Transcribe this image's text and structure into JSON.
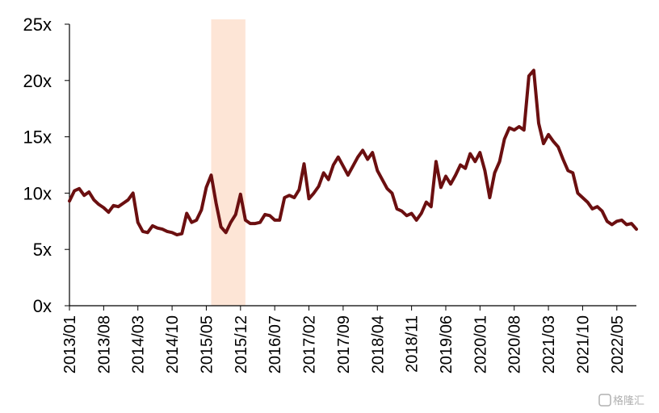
{
  "chart_data": {
    "type": "line",
    "title": "",
    "xlabel": "",
    "ylabel": "",
    "ylim": [
      0,
      25
    ],
    "xlim": [
      "2013-01",
      "2022-09"
    ],
    "y_ticks": [
      "0x",
      "5x",
      "10x",
      "15x",
      "20x",
      "25x"
    ],
    "x_ticks": [
      "2013/01",
      "2013/08",
      "2014/03",
      "2014/10",
      "2015/05",
      "2015/12",
      "2016/07",
      "2017/02",
      "2017/09",
      "2018/04",
      "2018/11",
      "2019/06",
      "2020/01",
      "2020/08",
      "2021/03",
      "2021/10",
      "2022/05"
    ],
    "grid": false,
    "highlight_band": {
      "from": "2015-06",
      "to": "2016-01",
      "color": "#fde5d6"
    },
    "series": [
      {
        "color": "#6b0f10",
        "points": [
          [
            "2013-01",
            9.3
          ],
          [
            "2013-02",
            10.2
          ],
          [
            "2013-03",
            10.4
          ],
          [
            "2013-04",
            9.8
          ],
          [
            "2013-05",
            10.1
          ],
          [
            "2013-06",
            9.4
          ],
          [
            "2013-07",
            9.0
          ],
          [
            "2013-08",
            8.7
          ],
          [
            "2013-09",
            8.3
          ],
          [
            "2013-10",
            8.9
          ],
          [
            "2013-11",
            8.8
          ],
          [
            "2013-12",
            9.1
          ],
          [
            "2014-01",
            9.4
          ],
          [
            "2014-02",
            10.0
          ],
          [
            "2014-03",
            7.4
          ],
          [
            "2014-04",
            6.6
          ],
          [
            "2014-05",
            6.5
          ],
          [
            "2014-06",
            7.1
          ],
          [
            "2014-07",
            6.9
          ],
          [
            "2014-08",
            6.8
          ],
          [
            "2014-09",
            6.6
          ],
          [
            "2014-10",
            6.5
          ],
          [
            "2014-11",
            6.3
          ],
          [
            "2014-12",
            6.4
          ],
          [
            "2015-01",
            8.2
          ],
          [
            "2015-02",
            7.4
          ],
          [
            "2015-03",
            7.6
          ],
          [
            "2015-04",
            8.5
          ],
          [
            "2015-05",
            10.5
          ],
          [
            "2015-06",
            11.6
          ],
          [
            "2015-07",
            9.1
          ],
          [
            "2015-08",
            7.0
          ],
          [
            "2015-09",
            6.5
          ],
          [
            "2015-10",
            7.4
          ],
          [
            "2015-11",
            8.1
          ],
          [
            "2015-12",
            9.9
          ],
          [
            "2016-01",
            7.6
          ],
          [
            "2016-02",
            7.3
          ],
          [
            "2016-03",
            7.3
          ],
          [
            "2016-04",
            7.4
          ],
          [
            "2016-05",
            8.1
          ],
          [
            "2016-06",
            8.0
          ],
          [
            "2016-07",
            7.6
          ],
          [
            "2016-08",
            7.6
          ],
          [
            "2016-09",
            9.6
          ],
          [
            "2016-10",
            9.8
          ],
          [
            "2016-11",
            9.6
          ],
          [
            "2016-12",
            10.3
          ],
          [
            "2017-01",
            12.6
          ],
          [
            "2017-02",
            9.5
          ],
          [
            "2017-03",
            10.0
          ],
          [
            "2017-04",
            10.6
          ],
          [
            "2017-05",
            11.8
          ],
          [
            "2017-06",
            11.2
          ],
          [
            "2017-07",
            12.5
          ],
          [
            "2017-08",
            13.2
          ],
          [
            "2017-09",
            12.4
          ],
          [
            "2017-10",
            11.6
          ],
          [
            "2017-11",
            12.4
          ],
          [
            "2017-12",
            13.2
          ],
          [
            "2018-01",
            13.8
          ],
          [
            "2018-02",
            13.0
          ],
          [
            "2018-03",
            13.6
          ],
          [
            "2018-04",
            12.0
          ],
          [
            "2018-05",
            11.2
          ],
          [
            "2018-06",
            10.4
          ],
          [
            "2018-07",
            10.0
          ],
          [
            "2018-08",
            8.6
          ],
          [
            "2018-09",
            8.4
          ],
          [
            "2018-10",
            8.0
          ],
          [
            "2018-11",
            8.2
          ],
          [
            "2018-12",
            7.6
          ],
          [
            "2019-01",
            8.2
          ],
          [
            "2019-02",
            9.2
          ],
          [
            "2019-03",
            8.8
          ],
          [
            "2019-04",
            12.8
          ],
          [
            "2019-05",
            10.5
          ],
          [
            "2019-06",
            11.5
          ],
          [
            "2019-07",
            10.8
          ],
          [
            "2019-08",
            11.6
          ],
          [
            "2019-09",
            12.5
          ],
          [
            "2019-10",
            12.2
          ],
          [
            "2019-11",
            13.5
          ],
          [
            "2019-12",
            12.8
          ],
          [
            "2020-01",
            13.6
          ],
          [
            "2020-02",
            12.0
          ],
          [
            "2020-03",
            9.6
          ],
          [
            "2020-04",
            11.8
          ],
          [
            "2020-05",
            12.8
          ],
          [
            "2020-06",
            14.8
          ],
          [
            "2020-07",
            15.8
          ],
          [
            "2020-08",
            15.6
          ],
          [
            "2020-09",
            15.9
          ],
          [
            "2020-10",
            15.6
          ],
          [
            "2020-11",
            20.4
          ],
          [
            "2020-12",
            20.9
          ],
          [
            "2021-01",
            16.2
          ],
          [
            "2021-02",
            14.4
          ],
          [
            "2021-03",
            15.2
          ],
          [
            "2021-04",
            14.6
          ],
          [
            "2021-05",
            14.1
          ],
          [
            "2021-06",
            13.0
          ],
          [
            "2021-07",
            12.0
          ],
          [
            "2021-08",
            11.8
          ],
          [
            "2021-09",
            10.0
          ],
          [
            "2021-10",
            9.6
          ],
          [
            "2021-11",
            9.2
          ],
          [
            "2021-12",
            8.6
          ],
          [
            "2022-01",
            8.8
          ],
          [
            "2022-02",
            8.4
          ],
          [
            "2022-03",
            7.5
          ],
          [
            "2022-04",
            7.2
          ],
          [
            "2022-05",
            7.5
          ],
          [
            "2022-06",
            7.6
          ],
          [
            "2022-07",
            7.2
          ],
          [
            "2022-08",
            7.3
          ],
          [
            "2022-09",
            6.8
          ]
        ]
      }
    ]
  },
  "watermark": "格隆汇"
}
